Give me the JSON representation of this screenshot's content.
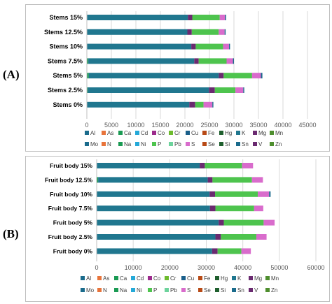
{
  "panels": [
    {
      "letter": "(A)"
    },
    {
      "letter": "(B)"
    }
  ],
  "colors": {
    "Al": "#1a6b8c",
    "As": "#e8743b",
    "Ca": "#1a9a53",
    "Cd": "#25a9d8",
    "Co": "#9c2a8c",
    "Cr": "#6dbb2e",
    "Cu": "#1a5f8a",
    "Fe": "#b84a16",
    "Hg": "#1f5f2e",
    "K": "#20778f",
    "Mg": "#6a2a70",
    "Mn": "#4e8e2e",
    "Mo": "#1a6b8c",
    "N": "#e8743b",
    "Na": "#1a9a53",
    "Ni": "#25a9d8",
    "P": "#4ec44e",
    "Pb": "#6dd39c",
    "S": "#d96ccc",
    "Se": "#b84a16",
    "Si": "#1f5f2e",
    "Sn": "#1a6b8c",
    "V": "#6a2a70",
    "Zn": "#4e8e2e"
  },
  "chart_data": [
    {
      "type": "bar",
      "orientation": "horizontal",
      "stacked": true,
      "categories": [
        "Stems 15%",
        "Stems 12.5%",
        "Stems 10%",
        "Stems 7.5%",
        "Stems 5%",
        "Stems 2.5%",
        "Stems 0%"
      ],
      "xlim": [
        0,
        45000
      ],
      "xticks": [
        "0",
        "5000",
        "10000",
        "15000",
        "20000",
        "25000",
        "30000",
        "35000",
        "40000",
        "45000"
      ],
      "grid": true,
      "legend_position": "bottom",
      "legend": [
        "Al",
        "As",
        "Ca",
        "Cd",
        "Co",
        "Cr",
        "Cu",
        "Fe",
        "Hg",
        "K",
        "Mg",
        "Mn",
        "Mo",
        "N",
        "Na",
        "Ni",
        "P",
        "Pb",
        "S",
        "Se",
        "Si",
        "Sn",
        "V",
        "Zn"
      ],
      "series": [
        {
          "name": "Ca",
          "values": [
            0,
            0,
            0,
            300,
            400,
            200,
            0
          ]
        },
        {
          "name": "K",
          "values": [
            20600,
            20500,
            21300,
            21600,
            26500,
            24700,
            20900
          ]
        },
        {
          "name": "Mg",
          "values": [
            900,
            900,
            900,
            900,
            1000,
            1200,
            1200
          ]
        },
        {
          "name": "P",
          "values": [
            5600,
            5500,
            5600,
            5700,
            5800,
            4200,
            1700
          ]
        },
        {
          "name": "S",
          "values": [
            1100,
            1200,
            1200,
            1300,
            1800,
            1600,
            1800
          ]
        },
        {
          "name": "Sn",
          "values": [
            200,
            200,
            200,
            200,
            300,
            200,
            200
          ]
        }
      ]
    },
    {
      "type": "bar",
      "orientation": "horizontal",
      "stacked": true,
      "categories": [
        "Fruit body 15%",
        "Fruit body 12.5%",
        "Fruit body 10%",
        "Fruit body 7.5%",
        "Fruit body 5%",
        "Fruit body 2.5%",
        "Fruit body 0%"
      ],
      "xlim": [
        0,
        60000
      ],
      "xticks": [
        "0",
        "10000",
        "20000",
        "30000",
        "40000",
        "50000",
        "60000"
      ],
      "grid": true,
      "legend_position": "bottom",
      "legend": [
        "Al",
        "As",
        "Ca",
        "Cd",
        "Co",
        "Cr",
        "Cu",
        "Fe",
        "Hg",
        "K",
        "Mg",
        "Mn",
        "Mo",
        "N",
        "Na",
        "Ni",
        "P",
        "Pb",
        "S",
        "Se",
        "Si",
        "Sn",
        "V",
        "Zn"
      ],
      "series": [
        {
          "name": "Ca",
          "values": [
            0,
            400,
            0,
            0,
            0,
            0,
            0
          ]
        },
        {
          "name": "K",
          "values": [
            28200,
            30000,
            30900,
            31000,
            33400,
            32500,
            31600
          ]
        },
        {
          "name": "Mg",
          "values": [
            1400,
            1300,
            1500,
            1500,
            1400,
            1500,
            1500
          ]
        },
        {
          "name": "P",
          "values": [
            10200,
            10800,
            11700,
            10600,
            10900,
            9700,
            6500
          ]
        },
        {
          "name": "S",
          "values": [
            3000,
            3000,
            3100,
            2500,
            3000,
            2800,
            2600
          ]
        },
        {
          "name": "Sn",
          "values": [
            0,
            0,
            400,
            0,
            0,
            0,
            0
          ]
        }
      ]
    }
  ]
}
